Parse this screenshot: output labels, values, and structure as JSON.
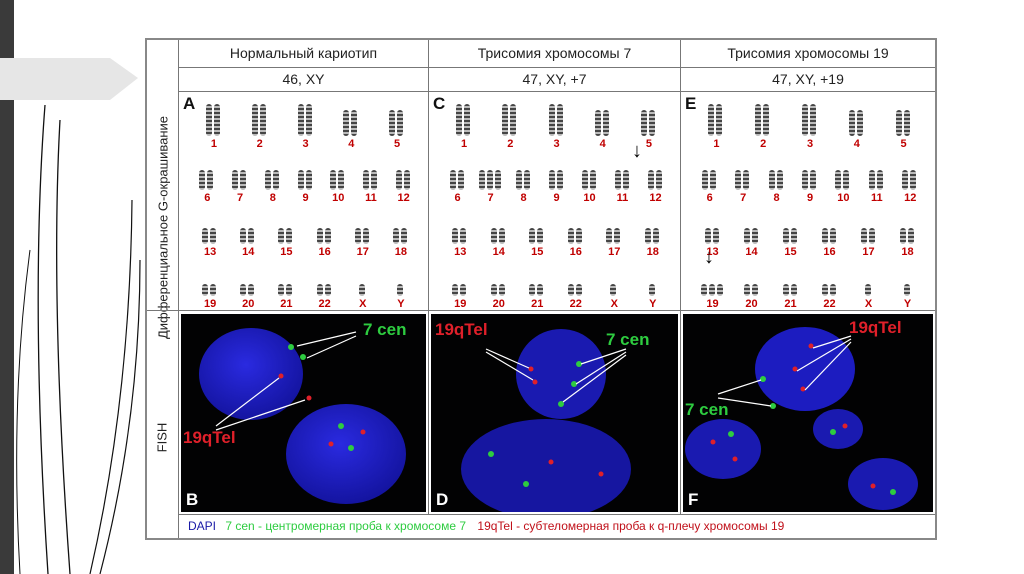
{
  "headers": {
    "col1_title": "Нормальный кариотип",
    "col2_title": "Трисомия хромосомы 7",
    "col3_title": "Трисомия хромосомы 19",
    "col1_karyotype": "46, XY",
    "col2_karyotype": "47, XY, +7",
    "col3_karyotype": "47, XY, +19"
  },
  "side_labels": {
    "top": "Дифференциальное G-окрашивание",
    "bottom": "FISH"
  },
  "panel_letters": [
    "A",
    "C",
    "E",
    "B",
    "D",
    "F"
  ],
  "chromosome_labels": [
    "1",
    "2",
    "3",
    "4",
    "5",
    "6",
    "7",
    "8",
    "9",
    "10",
    "11",
    "12",
    "13",
    "14",
    "15",
    "16",
    "17",
    "18",
    "19",
    "20",
    "21",
    "22",
    "X",
    "Y"
  ],
  "fish_labels": {
    "cen": "7 cen",
    "tel": "19qTel"
  },
  "legend": {
    "dapi": "DAPI",
    "cen": "7 cen - центромерная проба к хромосоме 7",
    "tel": "19qTel - субтеломерная проба к q-плечу хромосомы 19"
  },
  "colors": {
    "chromosome_number": "#c00000",
    "dapi": "#1a1aa6",
    "cen_probe": "#2ecc40",
    "tel_probe": "#e0202a",
    "nucleus": "#1f1fc0"
  }
}
